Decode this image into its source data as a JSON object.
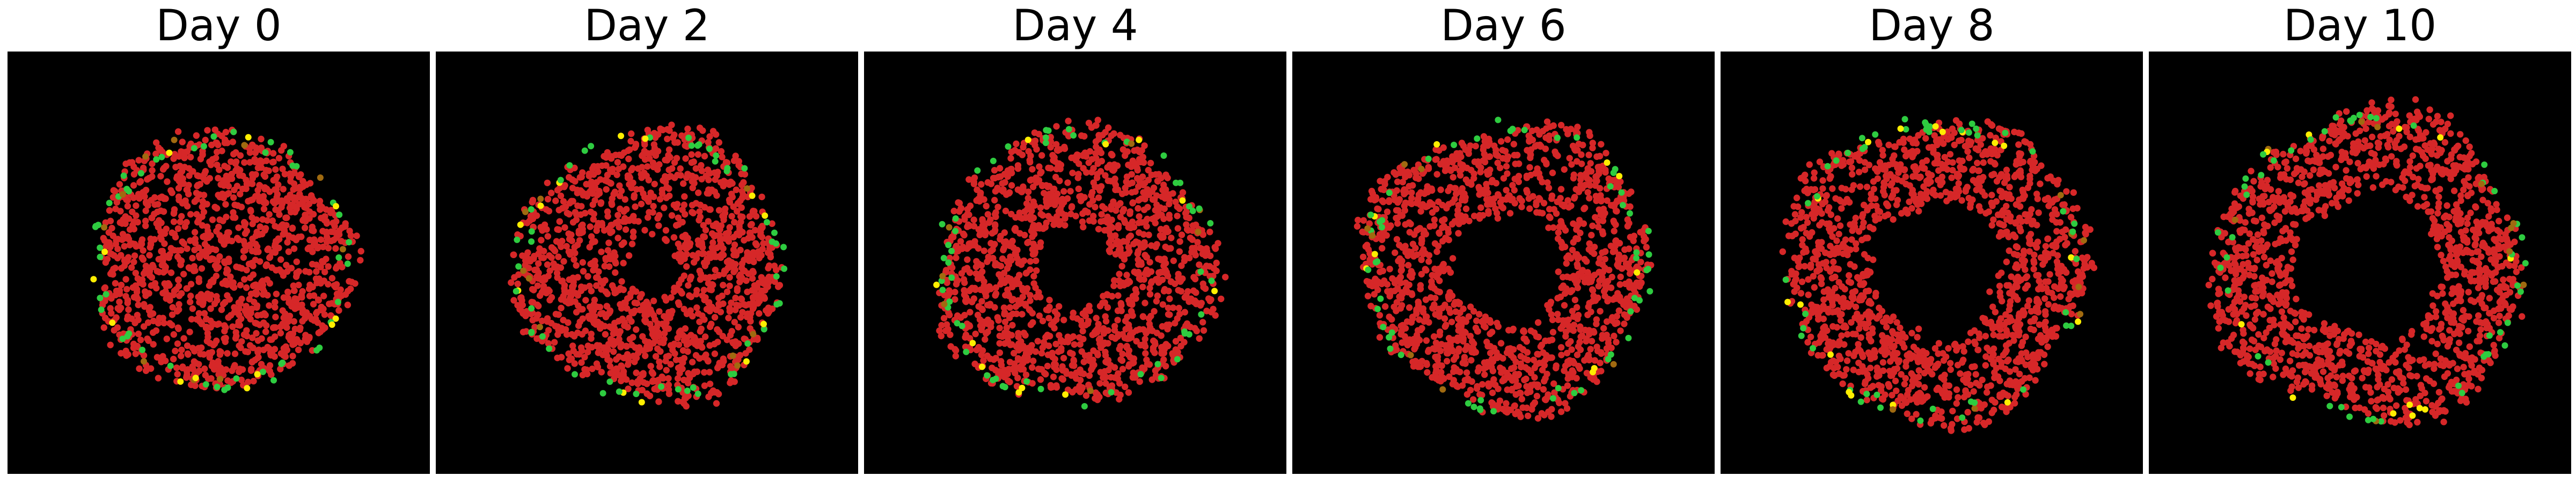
{
  "panels": [
    {
      "title": "Day 0"
    },
    {
      "title": "Day 2"
    },
    {
      "title": "Day 4"
    },
    {
      "title": "Day 6"
    },
    {
      "title": "Day 8"
    },
    {
      "title": "Day 10"
    }
  ],
  "colors": {
    "background": "#000000",
    "cell_red": "#d62728",
    "cell_green": "#2ecc40",
    "cell_yellow": "#ffee00",
    "cell_olive": "#a06a10"
  }
}
